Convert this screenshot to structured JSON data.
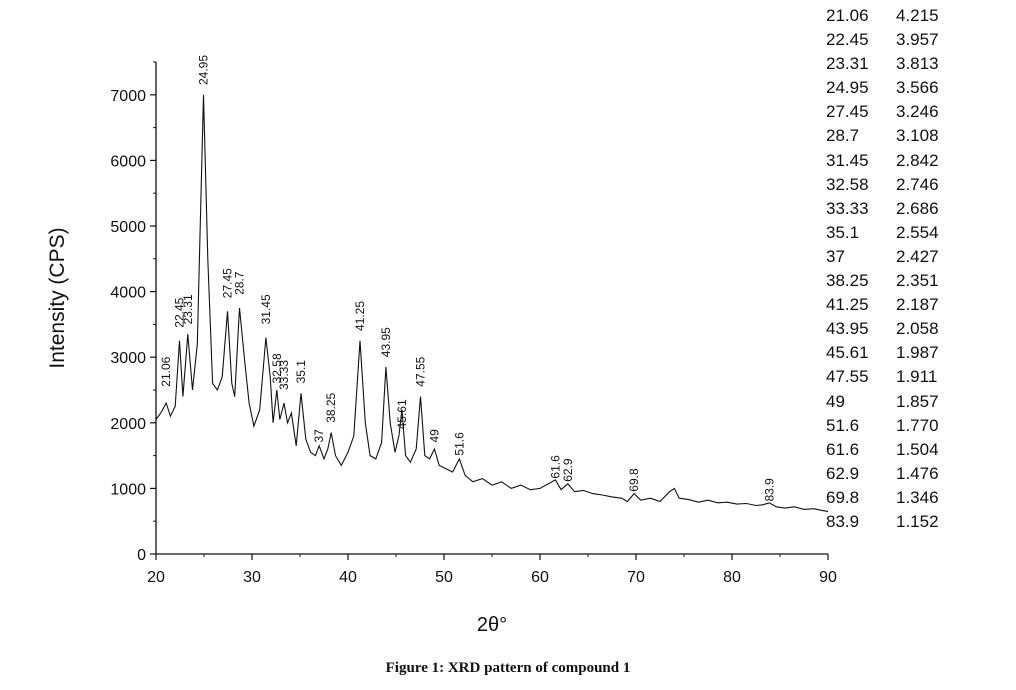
{
  "chart_data": {
    "type": "line",
    "xlabel": "2θ°",
    "ylabel": "Intensity (CPS)",
    "xlim": [
      20,
      90
    ],
    "ylim": [
      0,
      7500
    ],
    "x_ticks": [
      20,
      30,
      40,
      50,
      60,
      70,
      80,
      90
    ],
    "y_ticks": [
      0,
      1000,
      2000,
      3000,
      4000,
      5000,
      6000,
      7000
    ],
    "grid": false,
    "series": [
      {
        "x": [
          20,
          20.5,
          21.06,
          21.5,
          22,
          22.45,
          22.8,
          23.31,
          23.8,
          24.3,
          24.95,
          25.4,
          25.9,
          26.4,
          26.9,
          27.45,
          27.9,
          28.2,
          28.7,
          29.2,
          29.7,
          30.2,
          30.8,
          31.45,
          31.9,
          32.2,
          32.58,
          32.9,
          33.33,
          33.7,
          34.1,
          34.6,
          35.1,
          35.6,
          36.1,
          36.6,
          37,
          37.5,
          37.9,
          38.25,
          38.7,
          39.3,
          40,
          40.6,
          41.25,
          41.8,
          42.3,
          42.9,
          43.5,
          43.95,
          44.4,
          44.9,
          45.3,
          45.61,
          46,
          46.5,
          47.1,
          47.55,
          48,
          48.5,
          49,
          49.5,
          50.2,
          50.9,
          51.6,
          52.2,
          53,
          54,
          55,
          56,
          57,
          58,
          59,
          60,
          61.6,
          62.2,
          62.9,
          63.6,
          64.5,
          65.5,
          66.5,
          67.5,
          68.5,
          69.1,
          69.8,
          70.5,
          71.5,
          72.5,
          73.5,
          74,
          74.5,
          75.5,
          76.5,
          77.5,
          78.5,
          79.5,
          80.5,
          81.5,
          82.5,
          83.2,
          83.9,
          84.6,
          85.5,
          86.5,
          87.5,
          88.5,
          89.5,
          90
        ],
        "y": [
          2050,
          2150,
          2300,
          2100,
          2250,
          3250,
          2400,
          3350,
          2500,
          3200,
          7000,
          4500,
          2600,
          2500,
          2700,
          3700,
          2600,
          2400,
          3750,
          3000,
          2300,
          1950,
          2200,
          3300,
          2700,
          2000,
          2500,
          2050,
          2300,
          2000,
          2150,
          1650,
          2450,
          1750,
          1550,
          1500,
          1650,
          1450,
          1600,
          1850,
          1500,
          1350,
          1550,
          1800,
          3250,
          2000,
          1500,
          1450,
          1700,
          2850,
          2000,
          1550,
          1800,
          2200,
          1500,
          1400,
          1600,
          2400,
          1500,
          1450,
          1600,
          1350,
          1300,
          1250,
          1450,
          1200,
          1100,
          1150,
          1050,
          1100,
          1000,
          1050,
          980,
          1000,
          1130,
          980,
          1070,
          950,
          970,
          920,
          900,
          870,
          850,
          800,
          920,
          820,
          850,
          800,
          950,
          1000,
          850,
          830,
          790,
          820,
          780,
          790,
          760,
          770,
          740,
          750,
          780,
          720,
          700,
          720,
          680,
          690,
          660,
          650
        ]
      }
    ],
    "annotations": [
      "21.06",
      "22.45",
      "23.31",
      "24.95",
      "27.45",
      "28.7",
      "31.45",
      "32.58",
      "33.33",
      "35.1",
      "37",
      "38.25",
      "41.25",
      "43.95",
      "45.61",
      "47.55",
      "49",
      "51.6",
      "61.6",
      "62.9",
      "69.8",
      "83.9"
    ],
    "annotation_x": [
      21.06,
      22.45,
      23.31,
      24.95,
      27.45,
      28.7,
      31.45,
      32.58,
      33.33,
      35.1,
      37,
      38.25,
      41.25,
      43.95,
      45.61,
      47.55,
      49,
      51.6,
      61.6,
      62.9,
      69.8,
      83.9
    ],
    "annotation_y": [
      2550,
      3450,
      3500,
      7150,
      3900,
      3950,
      3500,
      2600,
      2500,
      2600,
      1700,
      2000,
      3400,
      3000,
      1900,
      2550,
      1700,
      1500,
      1150,
      1100,
      950,
      800
    ],
    "d_spacing_table": [
      [
        "21.06",
        "4.215"
      ],
      [
        "22.45",
        "3.957"
      ],
      [
        "23.31",
        "3.813"
      ],
      [
        "24.95",
        "3.566"
      ],
      [
        "27.45",
        "3.246"
      ],
      [
        "28.7",
        "3.108"
      ],
      [
        "31.45",
        "2.842"
      ],
      [
        "32.58",
        "2.746"
      ],
      [
        "33.33",
        "2.686"
      ],
      [
        "35.1",
        "2.554"
      ],
      [
        "37",
        "2.427"
      ],
      [
        "38.25",
        "2.351"
      ],
      [
        "41.25",
        "2.187"
      ],
      [
        "43.95",
        "2.058"
      ],
      [
        "45.61",
        "1.987"
      ],
      [
        "47.55",
        "1.911"
      ],
      [
        "49",
        "1.857"
      ],
      [
        "51.6",
        "1.770"
      ],
      [
        "61.6",
        "1.504"
      ],
      [
        "62.9",
        "1.476"
      ],
      [
        "69.8",
        "1.346"
      ],
      [
        "83.9",
        "1.152"
      ]
    ],
    "caption": "Figure 1: XRD pattern of compound 1"
  },
  "colors": {
    "line": "#111111",
    "axis": "#111111",
    "background": "#ffffff"
  }
}
